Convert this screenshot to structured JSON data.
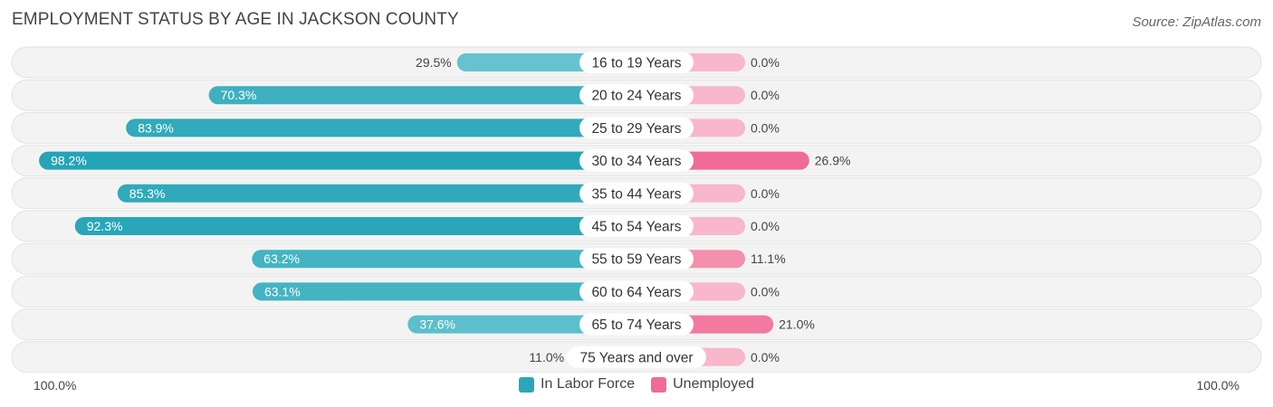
{
  "title": "EMPLOYMENT STATUS BY AGE IN JACKSON COUNTY",
  "source": "Source: ZipAtlas.com",
  "axis": {
    "left_label": "100.0%",
    "right_label": "100.0%"
  },
  "legend": [
    {
      "label": "In Labor Force",
      "color": "#2ca6b8"
    },
    {
      "label": "Unemployed",
      "color": "#f06b95"
    }
  ],
  "chart_data": {
    "type": "bar",
    "orientation": "horizontal-diverging",
    "title": "EMPLOYMENT STATUS BY AGE IN JACKSON COUNTY",
    "categories": [
      "16 to 19 Years",
      "20 to 24 Years",
      "25 to 29 Years",
      "30 to 34 Years",
      "35 to 44 Years",
      "45 to 54 Years",
      "55 to 59 Years",
      "60 to 64 Years",
      "65 to 74 Years",
      "75 Years and over"
    ],
    "series": [
      {
        "name": "In Labor Force",
        "values": [
          29.5,
          70.3,
          83.9,
          98.2,
          85.3,
          92.3,
          63.2,
          63.1,
          37.6,
          11.0
        ],
        "labels": [
          "29.5%",
          "70.3%",
          "83.9%",
          "98.2%",
          "85.3%",
          "92.3%",
          "63.2%",
          "63.1%",
          "37.6%",
          "11.0%"
        ]
      },
      {
        "name": "Unemployed",
        "values": [
          0.0,
          0.0,
          0.0,
          26.9,
          0.0,
          0.0,
          11.1,
          0.0,
          21.0,
          0.0
        ],
        "labels": [
          "0.0%",
          "0.0%",
          "0.0%",
          "26.9%",
          "0.0%",
          "0.0%",
          "11.1%",
          "0.0%",
          "21.0%",
          "0.0%"
        ]
      }
    ],
    "xlim": [
      -100,
      100
    ],
    "xlabel_left": "100.0%",
    "xlabel_right": "100.0%",
    "legend_position": "bottom-center"
  }
}
